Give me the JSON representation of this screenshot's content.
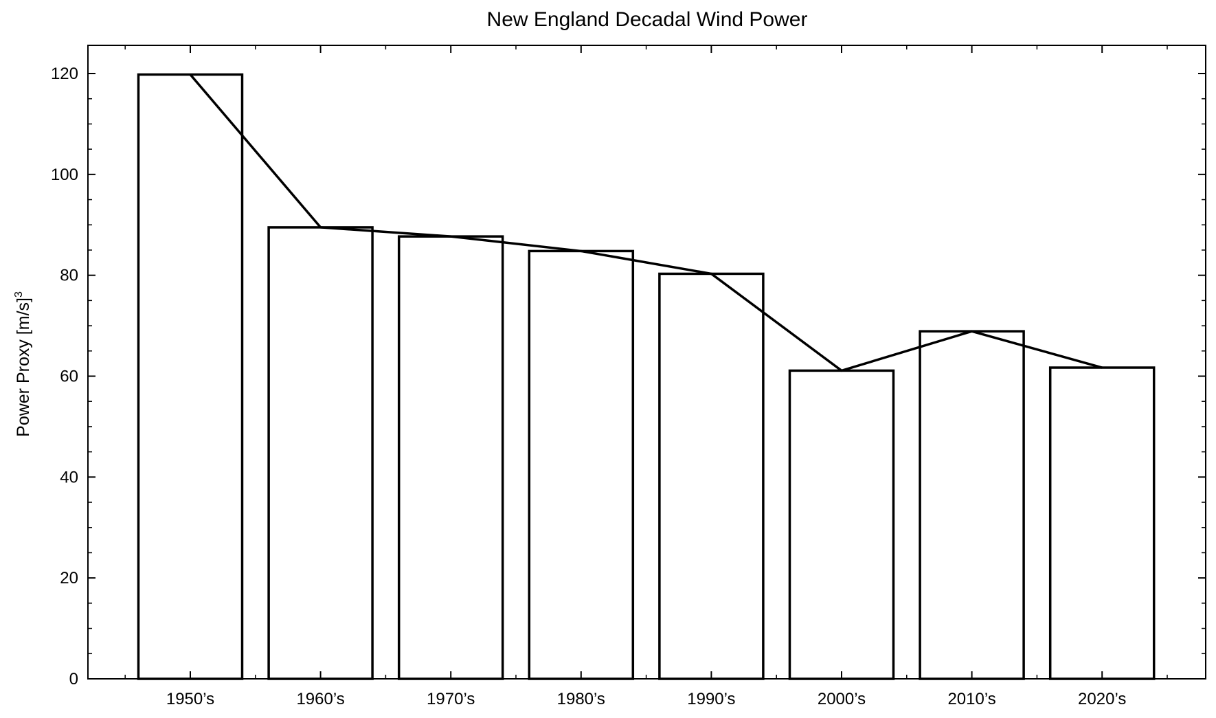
{
  "chart_data": {
    "type": "bar",
    "title": "New England Decadal Wind Power",
    "xlabel": "",
    "ylabel": "Power Proxy [m/s]",
    "ylabel_superscript": "3",
    "categories": [
      "1950’s",
      "1960’s",
      "1970’s",
      "1980’s",
      "1990’s",
      "2000’s",
      "2010’s",
      "2020’s"
    ],
    "series": [
      {
        "values": [
          119.8,
          89.5,
          87.7,
          84.8,
          80.3,
          61.1,
          68.9,
          61.7
        ]
      }
    ],
    "overlay": "line connecting bar tops",
    "ylim": [
      0,
      120
    ],
    "yticks": [
      0,
      20,
      40,
      60,
      80,
      100,
      120
    ],
    "grid": false,
    "legend": "none",
    "colors": {
      "bar_fill": "#ffffff",
      "bar_edge": "#000000",
      "line": "#000000"
    }
  }
}
